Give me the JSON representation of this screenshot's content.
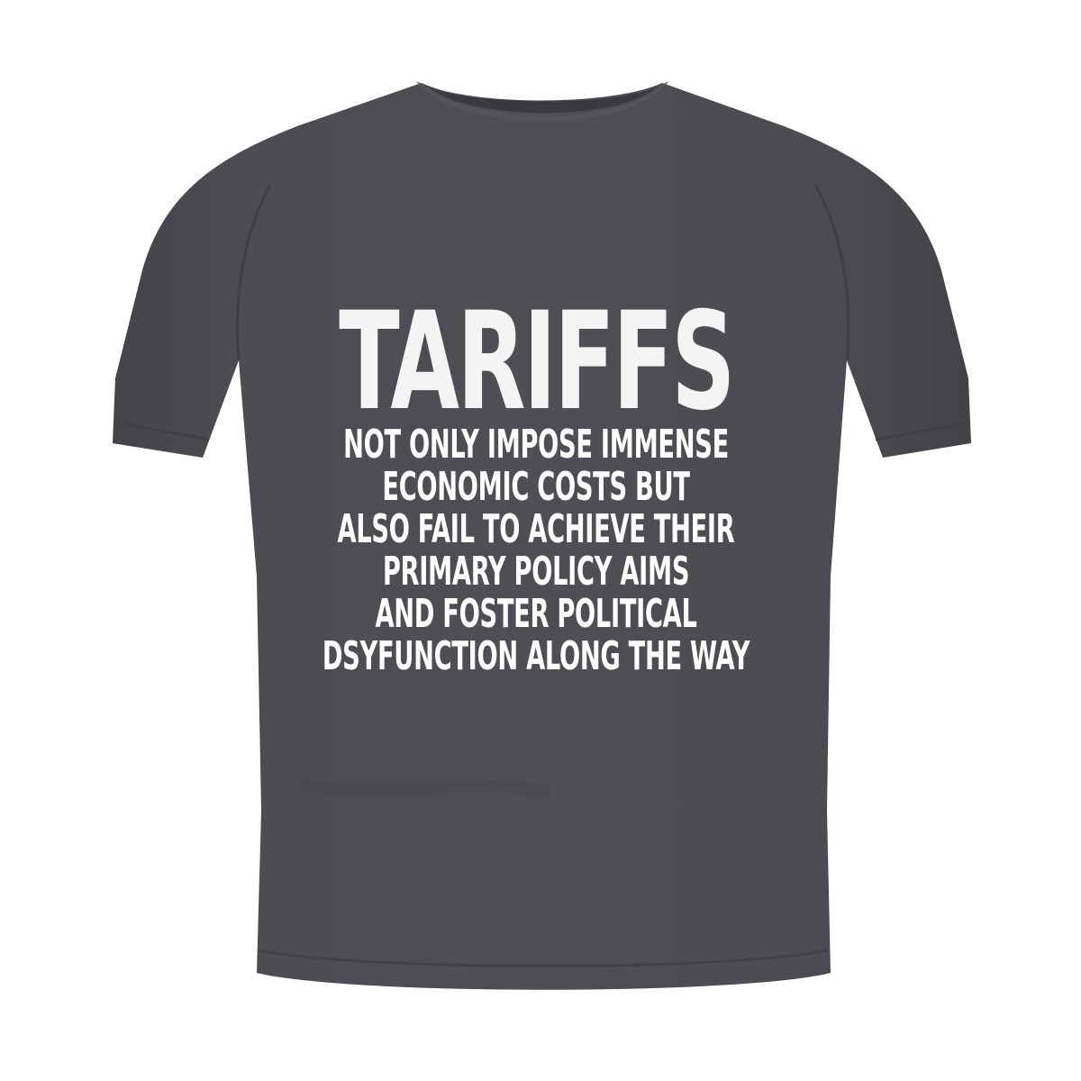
{
  "product": {
    "shirt_color": "#4b4a4f",
    "print_color": "#ffffff",
    "design": {
      "title": "TARIFFS",
      "lines": [
        "NOT ONLY IMPOSE IMMENSE",
        "ECONOMIC COSTS BUT",
        "ALSO FAIL TO ACHIEVE THEIR",
        "PRIMARY POLICY AIMS",
        "AND FOSTER POLITICAL",
        "DSYFUNCTION ALONG THE WAY"
      ]
    }
  }
}
